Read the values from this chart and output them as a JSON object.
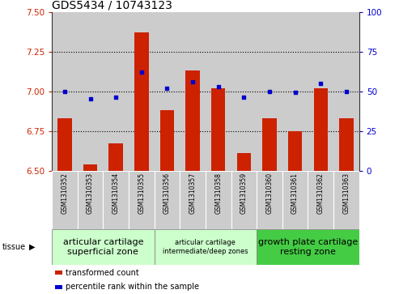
{
  "title": "GDS5434 / 10743123",
  "categories": [
    "GSM1310352",
    "GSM1310353",
    "GSM1310354",
    "GSM1310355",
    "GSM1310356",
    "GSM1310357",
    "GSM1310358",
    "GSM1310359",
    "GSM1310360",
    "GSM1310361",
    "GSM1310362",
    "GSM1310363"
  ],
  "bar_values": [
    6.83,
    6.54,
    6.67,
    7.37,
    6.88,
    7.13,
    7.02,
    6.61,
    6.83,
    6.75,
    7.02,
    6.83
  ],
  "bar_bottom": 6.5,
  "percentile_values": [
    50,
    45,
    46,
    62,
    52,
    56,
    53,
    46,
    50,
    49,
    55,
    50
  ],
  "ylim_left": [
    6.5,
    7.5
  ],
  "ylim_right": [
    0,
    100
  ],
  "yticks_left": [
    6.5,
    6.75,
    7.0,
    7.25,
    7.5
  ],
  "yticks_right": [
    0,
    25,
    50,
    75,
    100
  ],
  "hlines": [
    6.75,
    7.0,
    7.25
  ],
  "bar_color": "#cc2200",
  "scatter_color": "#0000cc",
  "bar_width": 0.55,
  "tissue_groups": [
    {
      "label": "articular cartilage\nsuperficial zone",
      "start": 0,
      "end": 3,
      "color": "#ccffcc",
      "fontsize": 8
    },
    {
      "label": "articular cartilage\nintermediate/deep zones",
      "start": 4,
      "end": 7,
      "color": "#ccffcc",
      "fontsize": 6
    },
    {
      "label": "growth plate cartilage\nresting zone",
      "start": 8,
      "end": 11,
      "color": "#44cc44",
      "fontsize": 8
    }
  ],
  "tissue_label": "tissue",
  "legend_items": [
    {
      "color": "#cc2200",
      "label": "transformed count"
    },
    {
      "color": "#0000cc",
      "label": "percentile rank within the sample"
    }
  ],
  "col_bg_color": "#cccccc",
  "plot_bg_color": "#ffffff",
  "title_fontsize": 10,
  "axis_label_color_left": "#cc2200",
  "axis_label_color_right": "#0000cc",
  "tick_fontsize": 7.5
}
